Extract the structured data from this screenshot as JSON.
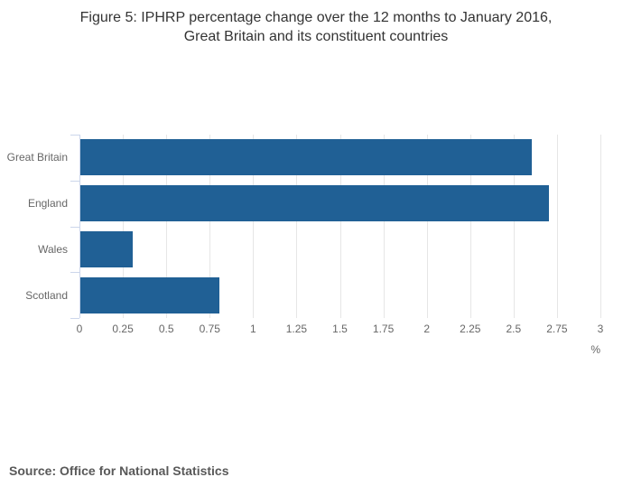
{
  "title": {
    "line1": "Figure 5: IPHRP percentage change over the 12 months to January 2016,",
    "line2": "Great Britain and its constituent countries"
  },
  "source_note": "Source: Office for National Statistics",
  "colors": {
    "bar": "#206095",
    "gridline": "#e6e6e6",
    "axis_line": "#ccd6eb",
    "label_text": "#666666",
    "title_text": "#333333",
    "source_text": "#595959",
    "background": "#ffffff"
  },
  "chart_data": {
    "type": "bar",
    "orientation": "horizontal",
    "title": "Figure 5: IPHRP percentage change over the 12 months to January 2016, Great Britain and its constituent countries",
    "categories": [
      "Great Britain",
      "England",
      "Wales",
      "Scotland"
    ],
    "values": [
      2.6,
      2.7,
      0.3,
      0.8
    ],
    "xlabel": "%",
    "ylabel": "",
    "xlim": [
      0,
      3
    ],
    "xticks": [
      0,
      0.25,
      0.5,
      0.75,
      1,
      1.25,
      1.5,
      1.75,
      2,
      2.25,
      2.5,
      2.75,
      3
    ],
    "grid": true,
    "legend": false,
    "data_labels": false
  }
}
